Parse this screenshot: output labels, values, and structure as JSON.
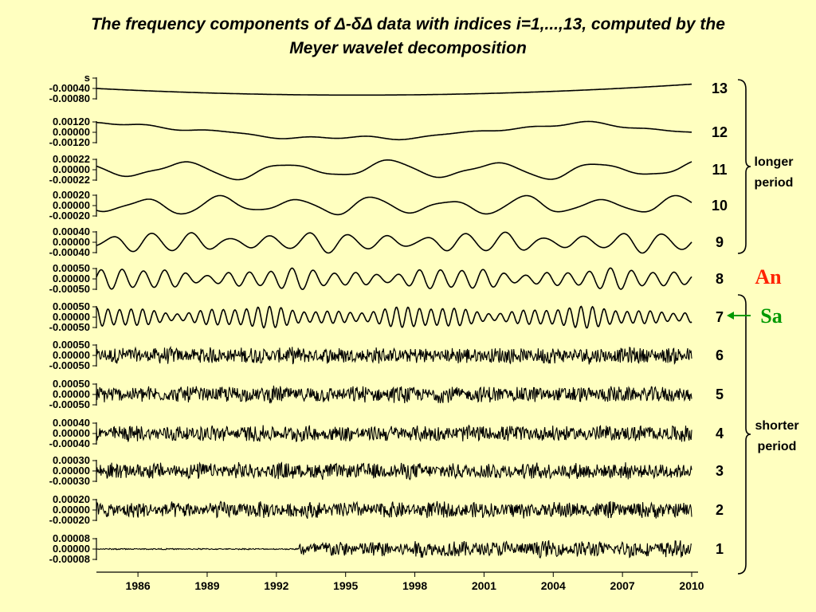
{
  "title_line1": "The frequency components of Δ-δΔ data with indices i=1,...,13, computed by the",
  "title_line2": "Meyer wavelet decomposition",
  "annotations": {
    "longer_period": [
      "longer",
      "period"
    ],
    "shorter_period": [
      "shorter",
      "period"
    ],
    "an": "An",
    "sa": "Sa",
    "an_color": "#ff2200",
    "sa_color": "#009900"
  },
  "chart_data": {
    "type": "line",
    "x_axis": {
      "range": [
        1984.2,
        2010
      ],
      "tick_labels": [
        "1986",
        "1989",
        "1992",
        "1995",
        "1998",
        "2001",
        "2004",
        "2007",
        "2010"
      ],
      "tick_values": [
        1986,
        1989,
        1992,
        1995,
        1998,
        2001,
        2004,
        2007,
        2010
      ]
    },
    "panels": [
      {
        "index": "13",
        "ticks": [
          "s",
          "-0.00040",
          "-0.00080"
        ],
        "amplitude": 0.0004,
        "center": -0.0006,
        "period_years": 30,
        "kind": "trend"
      },
      {
        "index": "12",
        "ticks": [
          "0.00120",
          "0.00000",
          "-0.00120"
        ],
        "amplitude": 0.0008,
        "center": 0.0,
        "period_years": 20,
        "kind": "wave"
      },
      {
        "index": "11",
        "ticks": [
          "0.00022",
          "0.00000",
          "-0.00022"
        ],
        "amplitude": 0.00015,
        "center": 0.0,
        "period_years": 4.5,
        "kind": "wave"
      },
      {
        "index": "10",
        "ticks": [
          "0.00020",
          "0.00000",
          "-0.00020"
        ],
        "amplitude": 0.00012,
        "center": 0.0,
        "period_years": 3.3,
        "kind": "wave"
      },
      {
        "index": "9",
        "ticks": [
          "0.00040",
          "0.00000",
          "-0.00040"
        ],
        "amplitude": 0.00025,
        "center": 0.0,
        "period_years": 1.7,
        "kind": "wave"
      },
      {
        "index": "8",
        "ticks": [
          "0.00050",
          "0.00000",
          "-0.00050"
        ],
        "amplitude": 0.00045,
        "center": 0.0,
        "period_years": 0.92,
        "kind": "wave"
      },
      {
        "index": "7",
        "ticks": [
          "0.00050",
          "0.00000",
          "-0.00050"
        ],
        "amplitude": 0.00048,
        "center": 0.0,
        "period_years": 0.5,
        "kind": "wave"
      },
      {
        "index": "6",
        "ticks": [
          "0.00050",
          "0.00000",
          "-0.00050"
        ],
        "amplitude": 0.00025,
        "center": 0.0,
        "period_years": 0.25,
        "kind": "noise"
      },
      {
        "index": "5",
        "ticks": [
          "0.00050",
          "0.00000",
          "-0.00050"
        ],
        "amplitude": 0.00018,
        "center": 0.0,
        "period_years": 0.125,
        "kind": "noise"
      },
      {
        "index": "4",
        "ticks": [
          "0.00040",
          "0.00000",
          "-0.00040"
        ],
        "amplitude": 0.00015,
        "center": 0.0,
        "period_years": 0.06,
        "kind": "noise"
      },
      {
        "index": "3",
        "ticks": [
          "0.00030",
          "0.00000",
          "-0.00030"
        ],
        "amplitude": 0.00012,
        "center": 0.0,
        "period_years": 0.03,
        "kind": "noise"
      },
      {
        "index": "2",
        "ticks": [
          "0.00020",
          "0.00000",
          "-0.00020"
        ],
        "amplitude": 6e-05,
        "center": 0.0,
        "period_years": 0.015,
        "kind": "noise"
      },
      {
        "index": "1",
        "ticks": [
          "0.00008",
          "0.00000",
          "-0.00008"
        ],
        "amplitude": 3e-05,
        "center": 0.0,
        "period_years": 0.008,
        "kind": "noise_late",
        "onset_year": 1993
      }
    ]
  }
}
